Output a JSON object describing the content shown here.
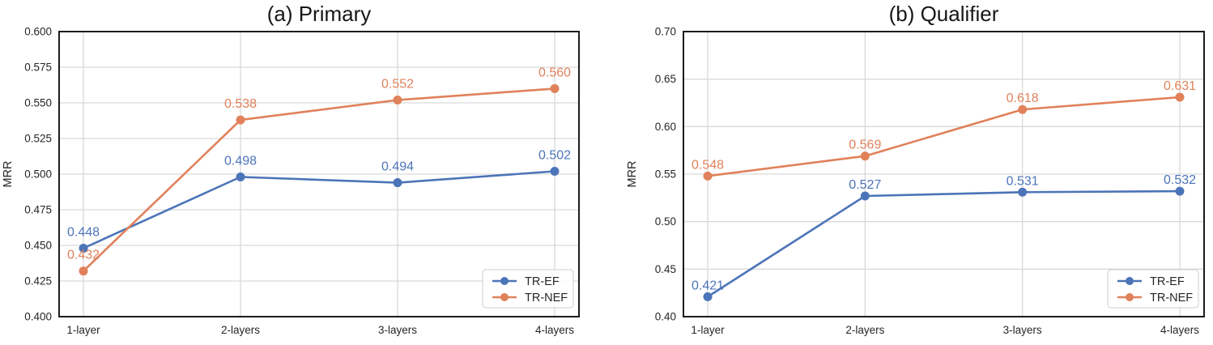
{
  "style": {
    "background": "#ffffff",
    "grid_color": "#d9d9d9",
    "spine_color": "#1c1c1c",
    "tick_label_color": "#262626",
    "title_color": "#171717",
    "legend_border_color": "#cccccc",
    "blue": "#4C74B8",
    "orange": "#E0815A"
  },
  "chart_data": [
    {
      "type": "line",
      "title": "(a) Primary",
      "ylabel": "MRR",
      "xlabel": "",
      "categories": [
        "1-layer",
        "2-layers",
        "3-layers",
        "4-layers"
      ],
      "series": [
        {
          "name": "TR-EF",
          "color": "#4C74B8",
          "marker": "circle",
          "values": [
            0.448,
            0.498,
            0.494,
            0.502
          ],
          "labels": [
            "0.448",
            "0.498",
            "0.494",
            "0.502"
          ]
        },
        {
          "name": "TR-NEF",
          "color": "#E0815A",
          "marker": "circle",
          "values": [
            0.432,
            0.538,
            0.552,
            0.56
          ],
          "labels": [
            "0.432",
            "0.538",
            "0.552",
            "0.560"
          ]
        }
      ],
      "ylim": [
        0.4,
        0.6
      ],
      "ytick_labels": [
        "0.400",
        "0.425",
        "0.450",
        "0.475",
        "0.500",
        "0.525",
        "0.550",
        "0.575",
        "0.600"
      ],
      "grid": true,
      "legend_position": "lower right"
    },
    {
      "type": "line",
      "title": "(b) Qualifier",
      "ylabel": "MRR",
      "xlabel": "",
      "categories": [
        "1-layer",
        "2-layers",
        "3-layers",
        "4-layers"
      ],
      "series": [
        {
          "name": "TR-EF",
          "color": "#4C74B8",
          "marker": "circle",
          "values": [
            0.421,
            0.527,
            0.531,
            0.532
          ],
          "labels": [
            "0.421",
            "0.527",
            "0.531",
            "0.532"
          ]
        },
        {
          "name": "TR-NEF",
          "color": "#E0815A",
          "marker": "circle",
          "values": [
            0.548,
            0.569,
            0.618,
            0.631
          ],
          "labels": [
            "0.548",
            "0.569",
            "0.618",
            "0.631"
          ]
        }
      ],
      "ylim": [
        0.4,
        0.7
      ],
      "ytick_labels": [
        "0.40",
        "0.45",
        "0.50",
        "0.55",
        "0.60",
        "0.65",
        "0.70"
      ],
      "grid": true,
      "legend_position": "lower right"
    }
  ]
}
